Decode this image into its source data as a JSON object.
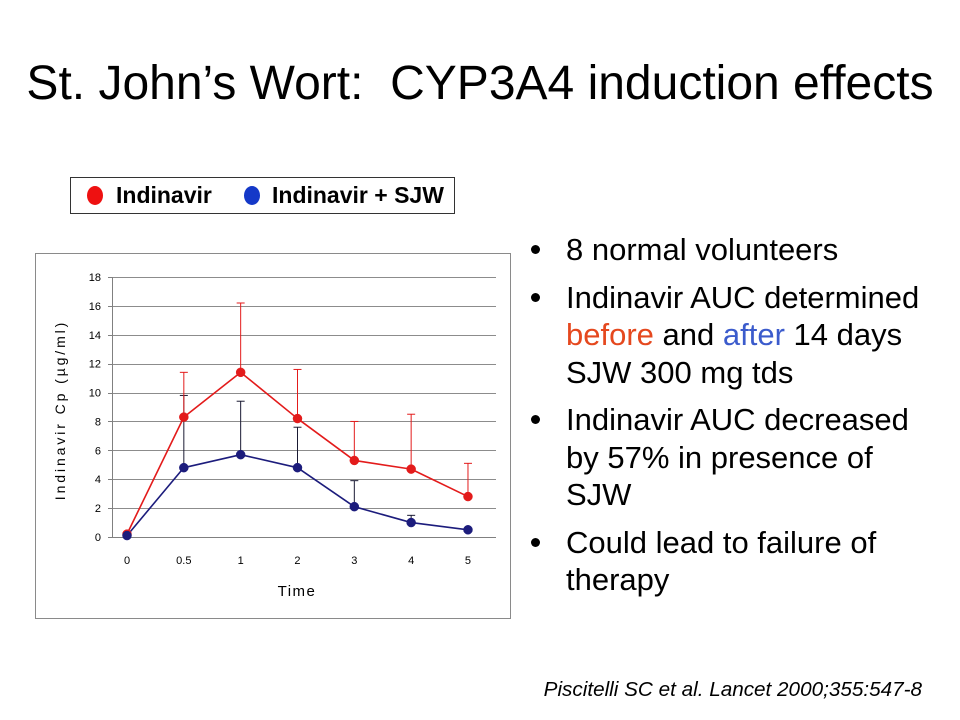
{
  "title": "St. John’s Wort:  CYP3A4 induction effects",
  "chart_data": {
    "type": "line",
    "categories": [
      "0",
      "0.5",
      "1",
      "2",
      "3",
      "4",
      "5"
    ],
    "xlabel": "Time",
    "ylabel": "Indinavir Cp (µg/ml)",
    "ylim": [
      0,
      18
    ],
    "yticks": [
      0,
      2,
      4,
      6,
      8,
      10,
      12,
      14,
      16,
      18
    ],
    "grid": true,
    "legend": "top-left",
    "series": [
      {
        "name": "Indinavir",
        "color": "#e31b1b",
        "legend_color": "#ee1111",
        "error_bar_color": "#e31b1b",
        "values": [
          0.2,
          8.3,
          11.4,
          8.2,
          5.3,
          4.7,
          2.8
        ],
        "error_bar_top": [
          null,
          11.4,
          16.2,
          11.6,
          8.0,
          8.5,
          5.1
        ]
      },
      {
        "name": "Indinavir + SJW",
        "color": "#1c1c7c",
        "legend_color": "#1438c8",
        "error_bar_color": "#1a1a33",
        "values": [
          0.1,
          4.8,
          5.7,
          4.8,
          2.1,
          1.0,
          0.5
        ],
        "error_bar_top": [
          null,
          9.8,
          9.4,
          7.6,
          3.9,
          1.5,
          null
        ]
      }
    ]
  },
  "bullets": [
    {
      "text": "8 normal volunteers"
    },
    {
      "segments": [
        {
          "text": "Indinavir AUC determined "
        },
        {
          "text": "before",
          "color": "#e5481e"
        },
        {
          "text": " and "
        },
        {
          "text": "after",
          "color": "#3b5bcc"
        },
        {
          "text": " 14 days SJW 300 mg tds"
        }
      ]
    },
    {
      "text": "Indinavir AUC decreased by 57% in presence of SJW"
    },
    {
      "text": "Could lead to failure of therapy"
    }
  ],
  "citation": "Piscitelli SC et al. Lancet 2000;355:547-8"
}
